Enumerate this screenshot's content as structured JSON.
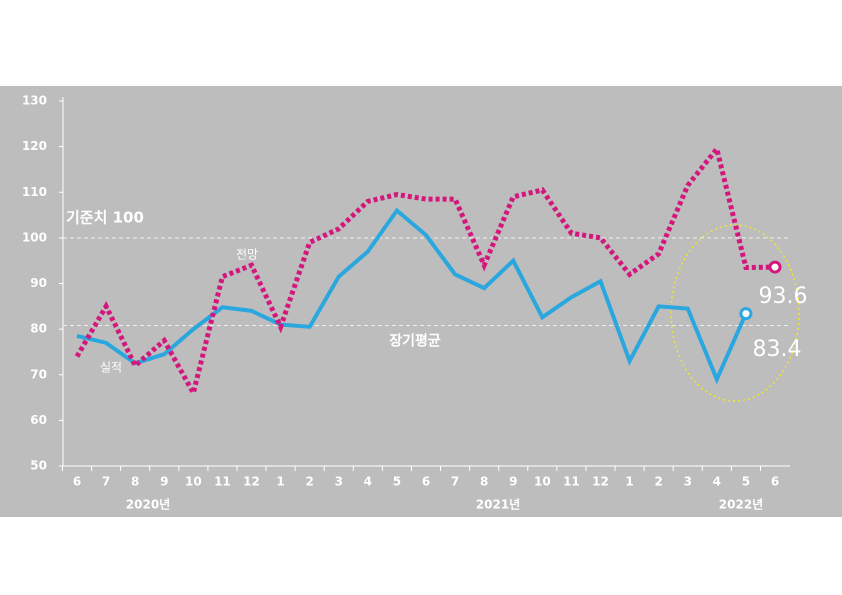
{
  "chart_data": {
    "type": "line",
    "categories": [
      "6",
      "7",
      "8",
      "9",
      "10",
      "11",
      "12",
      "1",
      "2",
      "3",
      "4",
      "5",
      "6",
      "7",
      "8",
      "9",
      "10",
      "11",
      "12",
      "1",
      "2",
      "3",
      "4",
      "5",
      "6"
    ],
    "year_labels": [
      "2020년",
      "2021년",
      "2022년"
    ],
    "series": [
      {
        "name": "실적",
        "color": "#2aa7de",
        "style": "solid",
        "values": [
          78.5,
          77,
          72.5,
          74.5,
          80,
          84.8,
          84,
          81,
          80.5,
          91.5,
          97,
          106,
          100.6,
          92,
          89,
          95,
          82.6,
          87,
          90.5,
          73,
          85,
          84.5,
          69,
          83.4,
          null
        ]
      },
      {
        "name": "전망",
        "color": "#d4177c",
        "style": "dotted",
        "values": [
          74,
          85,
          72,
          77.5,
          66,
          91.5,
          94,
          80.5,
          99,
          102,
          108,
          109.5,
          108.5,
          108.5,
          94,
          109,
          110.5,
          101,
          100,
          92,
          96.5,
          111.5,
          119.5,
          93.5,
          93.6
        ]
      }
    ],
    "reference_lines": [
      {
        "value": 100,
        "label": "기준치 100"
      },
      {
        "value": 80.8,
        "label": "장기평균"
      }
    ],
    "ylim": [
      50,
      130
    ],
    "yticks": [
      50,
      60,
      70,
      80,
      90,
      100,
      110,
      120,
      130
    ]
  }
}
